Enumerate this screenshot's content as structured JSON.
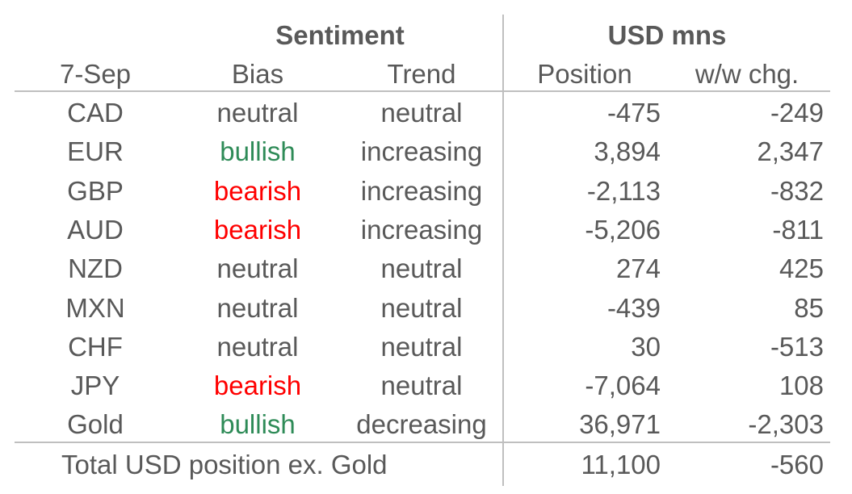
{
  "header": {
    "group_sentiment": "Sentiment",
    "group_usd": "USD mns",
    "date": "7-Sep",
    "bias": "Bias",
    "trend": "Trend",
    "position": "Position",
    "wow": "w/w chg."
  },
  "rows": [
    {
      "currency": "CAD",
      "bias": "neutral",
      "trend": "neutral",
      "position": "-475",
      "wow": "-249"
    },
    {
      "currency": "EUR",
      "bias": "bullish",
      "trend": "increasing",
      "position": "3,894",
      "wow": "2,347"
    },
    {
      "currency": "GBP",
      "bias": "bearish",
      "trend": "increasing",
      "position": "-2,113",
      "wow": "-832"
    },
    {
      "currency": "AUD",
      "bias": "bearish",
      "trend": "increasing",
      "position": "-5,206",
      "wow": "-811"
    },
    {
      "currency": "NZD",
      "bias": "neutral",
      "trend": "neutral",
      "position": "274",
      "wow": "425"
    },
    {
      "currency": "MXN",
      "bias": "neutral",
      "trend": "neutral",
      "position": "-439",
      "wow": "85"
    },
    {
      "currency": "CHF",
      "bias": "neutral",
      "trend": "neutral",
      "position": "30",
      "wow": "-513"
    },
    {
      "currency": "JPY",
      "bias": "bearish",
      "trend": "neutral",
      "position": "-7,064",
      "wow": "108"
    },
    {
      "currency": "Gold",
      "bias": "bullish",
      "trend": "decreasing",
      "position": "36,971",
      "wow": "-2,303"
    }
  ],
  "total": {
    "label": "Total USD position ex. Gold",
    "position": "11,100",
    "wow": "-560"
  },
  "colors": {
    "text": "#595959",
    "bullish": "#2e8b57",
    "bearish": "#ff0000",
    "rule": "#bfbfbf"
  }
}
